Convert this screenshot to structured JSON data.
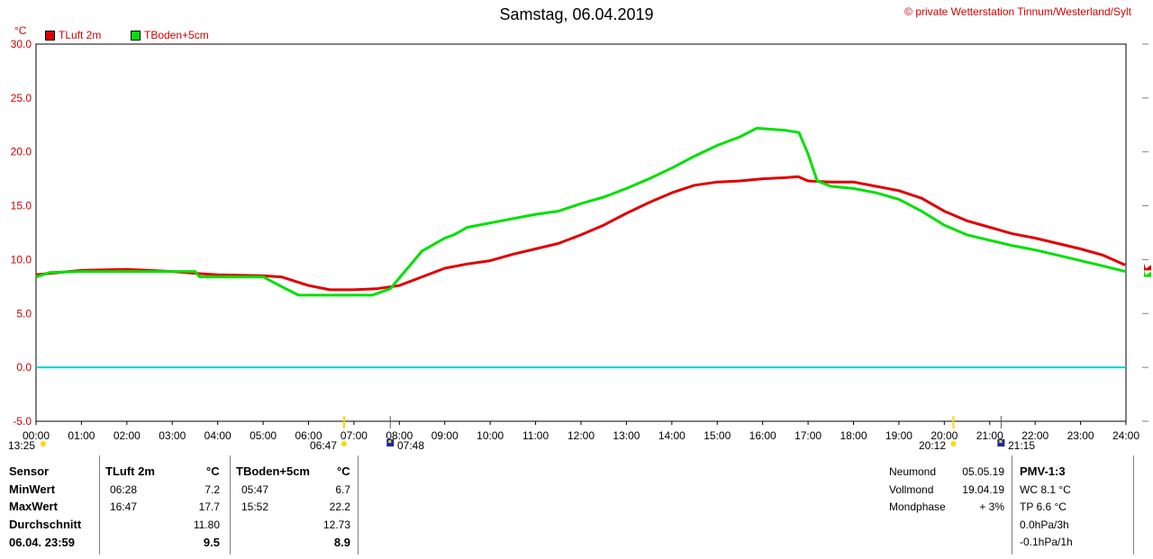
{
  "header": {
    "title": "Samstag, 06.04.2019",
    "copyright": "© private Wetterstation Tinnum/Westerland/Sylt",
    "unit": "°C"
  },
  "legend": [
    {
      "label": "TLuft 2m",
      "color": "#e00000"
    },
    {
      "label": "TBoden+5cm",
      "color": "#00e000"
    }
  ],
  "sun_moon_markers": {
    "moonset": "13:25",
    "sunrise": "06:47",
    "dawn": "07:48",
    "sunset": "20:12",
    "moonrise": "21:15"
  },
  "chart_data": {
    "type": "line",
    "title": "Samstag, 06.04.2019",
    "ylabel": "°C",
    "xlim": [
      0,
      24
    ],
    "ylim": [
      -5,
      30
    ],
    "y_ticks": [
      "30.0",
      "25.0",
      "20.0",
      "15.0",
      "10.0",
      "5.0",
      "0.0",
      "-5.0"
    ],
    "x_ticks": [
      "00:00",
      "01:00",
      "02:00",
      "03:00",
      "04:00",
      "05:00",
      "06:00",
      "07:00",
      "08:00",
      "09:00",
      "10:00",
      "11:00",
      "12:00",
      "13:00",
      "14:00",
      "15:00",
      "16:00",
      "17:00",
      "18:00",
      "19:00",
      "20:00",
      "21:00",
      "22:00",
      "23:00",
      "24:00"
    ],
    "grid": true,
    "reference_line": {
      "y": 0,
      "color": "#00d0d0"
    },
    "series": [
      {
        "name": "TLuft 2m",
        "color": "#e00000",
        "points": [
          [
            0,
            8.6
          ],
          [
            0.5,
            8.8
          ],
          [
            1,
            9.0
          ],
          [
            2,
            9.1
          ],
          [
            3,
            8.9
          ],
          [
            3.6,
            8.7
          ],
          [
            4,
            8.6
          ],
          [
            5,
            8.5
          ],
          [
            5.4,
            8.4
          ],
          [
            6,
            7.6
          ],
          [
            6.47,
            7.2
          ],
          [
            7,
            7.2
          ],
          [
            7.5,
            7.3
          ],
          [
            8,
            7.6
          ],
          [
            8.5,
            8.4
          ],
          [
            9,
            9.2
          ],
          [
            9.5,
            9.6
          ],
          [
            10,
            9.9
          ],
          [
            10.5,
            10.5
          ],
          [
            11,
            11.0
          ],
          [
            11.5,
            11.5
          ],
          [
            12,
            12.3
          ],
          [
            12.5,
            13.2
          ],
          [
            13,
            14.3
          ],
          [
            13.5,
            15.3
          ],
          [
            14,
            16.2
          ],
          [
            14.5,
            16.9
          ],
          [
            15,
            17.2
          ],
          [
            15.5,
            17.3
          ],
          [
            16,
            17.5
          ],
          [
            16.5,
            17.6
          ],
          [
            16.78,
            17.7
          ],
          [
            17,
            17.3
          ],
          [
            17.5,
            17.2
          ],
          [
            18,
            17.2
          ],
          [
            18.5,
            16.8
          ],
          [
            19,
            16.4
          ],
          [
            19.5,
            15.7
          ],
          [
            20,
            14.5
          ],
          [
            20.5,
            13.6
          ],
          [
            21,
            13.0
          ],
          [
            21.5,
            12.4
          ],
          [
            22,
            12.0
          ],
          [
            22.5,
            11.5
          ],
          [
            23,
            11.0
          ],
          [
            23.5,
            10.4
          ],
          [
            23.98,
            9.5
          ]
        ]
      },
      {
        "name": "TBoden+5cm",
        "color": "#00e000",
        "points": [
          [
            0,
            8.4
          ],
          [
            0.3,
            8.8
          ],
          [
            1,
            8.9
          ],
          [
            2,
            8.9
          ],
          [
            3,
            8.9
          ],
          [
            3.5,
            8.9
          ],
          [
            3.6,
            8.4
          ],
          [
            5,
            8.4
          ],
          [
            5.5,
            7.3
          ],
          [
            5.78,
            6.7
          ],
          [
            7.4,
            6.7
          ],
          [
            7.8,
            7.3
          ],
          [
            8,
            8.3
          ],
          [
            8.5,
            10.8
          ],
          [
            9,
            12.0
          ],
          [
            9.2,
            12.3
          ],
          [
            9.5,
            13.0
          ],
          [
            10,
            13.4
          ],
          [
            10.5,
            13.8
          ],
          [
            11,
            14.2
          ],
          [
            11.5,
            14.5
          ],
          [
            12,
            15.2
          ],
          [
            12.5,
            15.8
          ],
          [
            13,
            16.6
          ],
          [
            13.5,
            17.5
          ],
          [
            14,
            18.5
          ],
          [
            14.5,
            19.6
          ],
          [
            15,
            20.6
          ],
          [
            15.5,
            21.4
          ],
          [
            15.87,
            22.2
          ],
          [
            16.5,
            22.0
          ],
          [
            16.8,
            21.8
          ],
          [
            17,
            19.8
          ],
          [
            17.2,
            17.3
          ],
          [
            17.5,
            16.8
          ],
          [
            18,
            16.6
          ],
          [
            18.5,
            16.2
          ],
          [
            19,
            15.6
          ],
          [
            19.5,
            14.5
          ],
          [
            20,
            13.2
          ],
          [
            20.5,
            12.3
          ],
          [
            21,
            11.8
          ],
          [
            21.5,
            11.3
          ],
          [
            22,
            10.9
          ],
          [
            22.5,
            10.4
          ],
          [
            23,
            9.9
          ],
          [
            23.5,
            9.4
          ],
          [
            23.98,
            8.9
          ]
        ]
      }
    ]
  },
  "stats": {
    "rows": [
      {
        "label": "Sensor",
        "t1_time": "",
        "t1_val": "",
        "t2_time": "",
        "t2_val": ""
      },
      {
        "label": "MinWert",
        "t1_time": "06:28",
        "t1_val": "7.2",
        "t2_time": "05:47",
        "t2_val": "6.7"
      },
      {
        "label": "MaxWert",
        "t1_time": "16:47",
        "t1_val": "17.7",
        "t2_time": "15:52",
        "t2_val": "22.2"
      },
      {
        "label": "Durchschnitt",
        "t1_time": "",
        "t1_val": "11.80",
        "t2_time": "",
        "t2_val": "12.73"
      },
      {
        "label": "06.04. 23:59",
        "t1_time": "",
        "t1_val": "9.5",
        "t2_time": "",
        "t2_val": "8.9"
      }
    ],
    "col1_header": "TLuft 2m",
    "col1_unit": "°C",
    "col2_header": "TBoden+5cm",
    "col2_unit": "°C",
    "moon": [
      {
        "label": "Neumond",
        "value": "05.05.19"
      },
      {
        "label": "Vollmond",
        "value": "19.04.19"
      },
      {
        "label": "Mondphase",
        "value": "+ 3%"
      }
    ],
    "pmv": {
      "title": "PMV-1:3",
      "lines": [
        "WC 8.1 °C",
        "TP 6.6 °C",
        "0.0hPa/3h",
        "-0.1hPa/1h"
      ]
    }
  }
}
